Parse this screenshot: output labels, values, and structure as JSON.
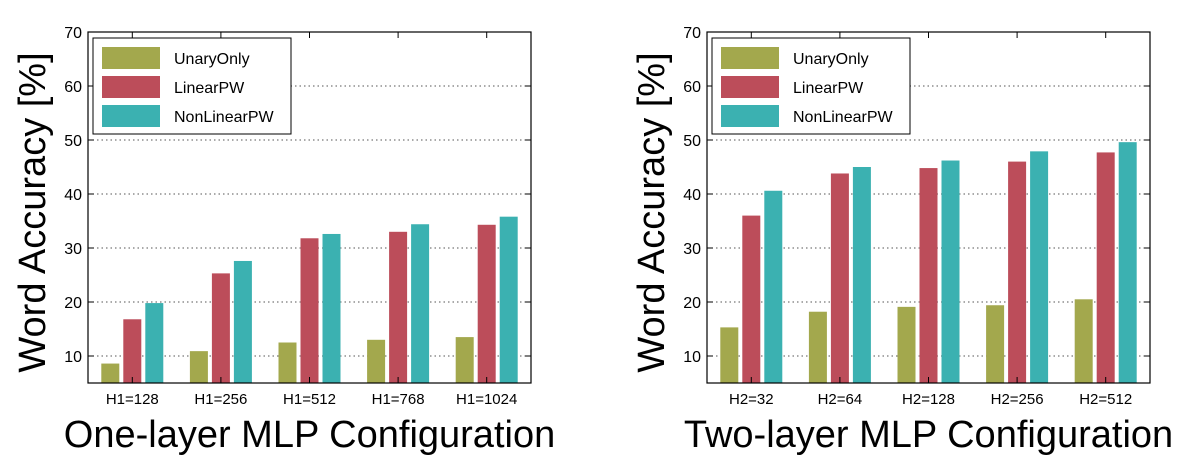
{
  "chart_data": [
    {
      "type": "bar",
      "title": "",
      "xlabel": "One-layer MLP Configuration",
      "ylabel": "Word Accuracy [%]",
      "categories": [
        "H1=128",
        "H1=256",
        "H1=512",
        "H1=768",
        "H1=1024"
      ],
      "ylim": [
        5,
        70
      ],
      "yticks": [
        10,
        20,
        30,
        40,
        50,
        60,
        70
      ],
      "grid": true,
      "legend_position": "top-left",
      "series": [
        {
          "name": "UnaryOnly",
          "color": "#a3a84d",
          "values": [
            8.6,
            10.9,
            12.5,
            13.0,
            13.5
          ]
        },
        {
          "name": "LinearPW",
          "color": "#bc4d5a",
          "values": [
            16.8,
            25.3,
            31.8,
            33.0,
            34.3
          ]
        },
        {
          "name": "NonLinearPW",
          "color": "#3bb1b1",
          "values": [
            19.8,
            27.6,
            32.6,
            34.4,
            35.8
          ]
        }
      ]
    },
    {
      "type": "bar",
      "title": "",
      "xlabel": "Two-layer MLP Configuration",
      "ylabel": "Word Accuracy [%]",
      "categories": [
        "H2=32",
        "H2=64",
        "H2=128",
        "H2=256",
        "H2=512"
      ],
      "ylim": [
        5,
        70
      ],
      "yticks": [
        10,
        20,
        30,
        40,
        50,
        60,
        70
      ],
      "grid": true,
      "legend_position": "top-left",
      "series": [
        {
          "name": "UnaryOnly",
          "color": "#a3a84d",
          "values": [
            15.3,
            18.2,
            19.1,
            19.4,
            20.5
          ]
        },
        {
          "name": "LinearPW",
          "color": "#bc4d5a",
          "values": [
            36.0,
            43.8,
            44.8,
            46.0,
            47.7
          ]
        },
        {
          "name": "NonLinearPW",
          "color": "#3bb1b1",
          "values": [
            40.6,
            45.0,
            46.2,
            47.9,
            49.6
          ]
        }
      ]
    }
  ]
}
